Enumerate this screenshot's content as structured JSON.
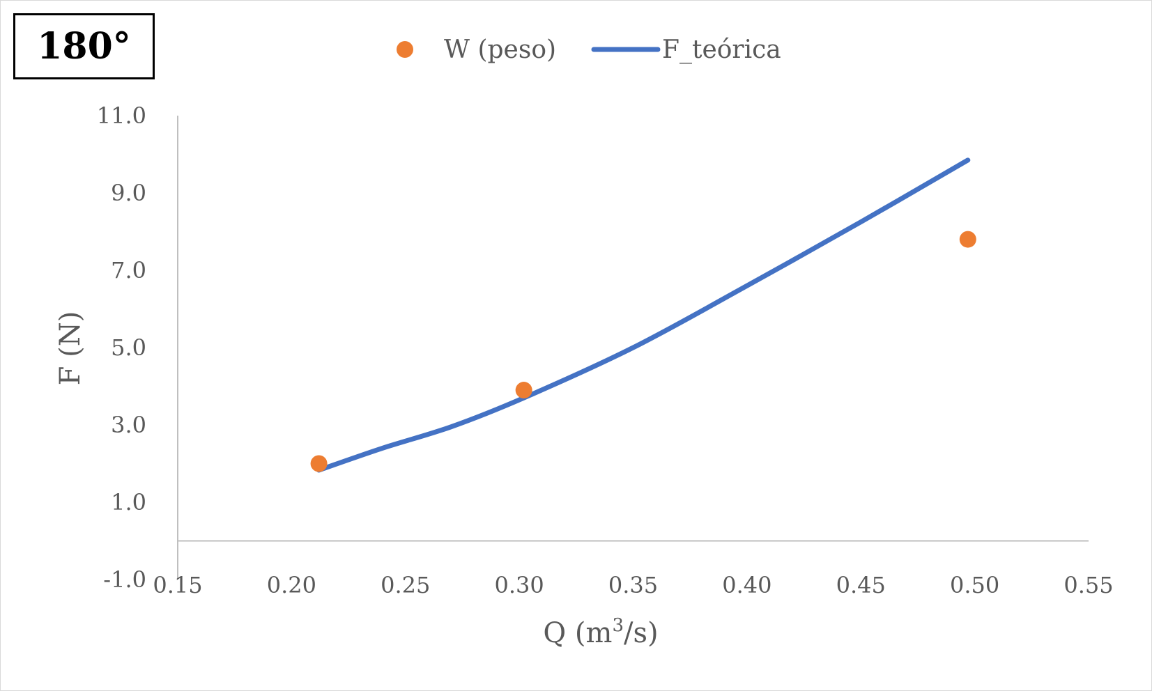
{
  "badge": {
    "text": "180°"
  },
  "chart_data": {
    "type": "scatter",
    "xlabel_base": "Q (m",
    "xlabel_sup": "3",
    "xlabel_tail": "/s)",
    "ylabel": "F (N)",
    "xlim": [
      0.15,
      0.55
    ],
    "ylim": [
      -1.0,
      11.0
    ],
    "x_ticks": [
      0.15,
      0.2,
      0.25,
      0.3,
      0.35,
      0.4,
      0.45,
      0.5,
      0.55
    ],
    "x_tick_labels": [
      "0.15",
      "0.20",
      "0.25",
      "0.30",
      "0.35",
      "0.40",
      "0.45",
      "0.50",
      "0.55"
    ],
    "y_ticks": [
      -1.0,
      1.0,
      3.0,
      5.0,
      7.0,
      9.0,
      11.0
    ],
    "y_tick_labels": [
      "-1.0",
      "1.0",
      "3.0",
      "5.0",
      "7.0",
      "9.0",
      "11.0"
    ],
    "grid": false,
    "legend_position": "top",
    "series": [
      {
        "name": "W (peso)",
        "kind": "scatter",
        "color": "#ED7D31",
        "x": [
          0.212,
          0.302,
          0.497
        ],
        "y": [
          2.0,
          3.9,
          7.8
        ]
      },
      {
        "name": "F_teórica",
        "kind": "line",
        "color": "#4472C4",
        "x": [
          0.212,
          0.24,
          0.27,
          0.302,
          0.35,
          0.4,
          0.45,
          0.497
        ],
        "y": [
          1.83,
          2.4,
          2.95,
          3.7,
          5.0,
          6.6,
          8.25,
          9.85
        ]
      }
    ]
  }
}
